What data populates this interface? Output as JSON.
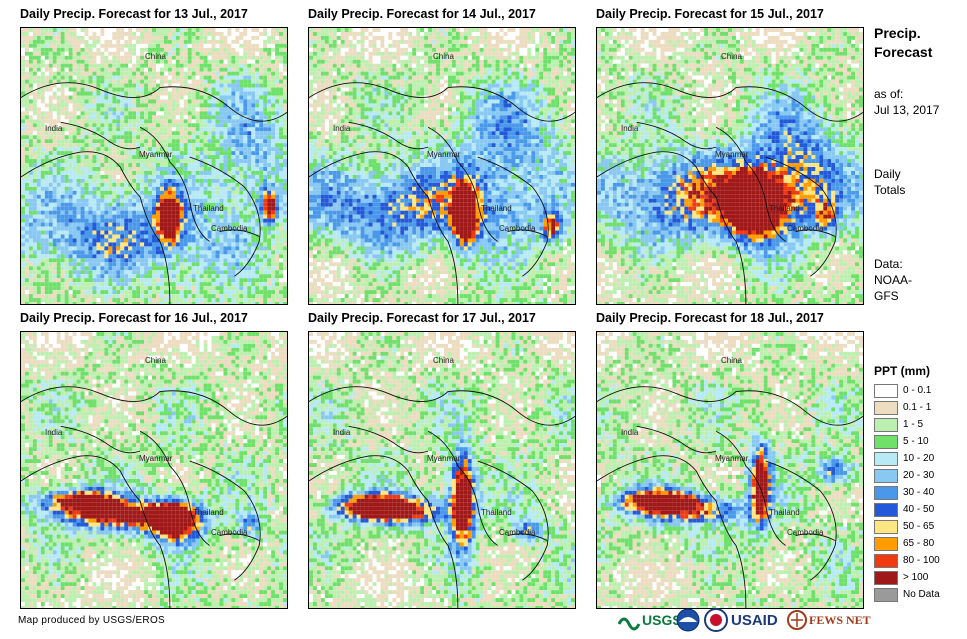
{
  "panels": [
    {
      "title": "Daily Precip. Forecast for 13 Jul., 2017"
    },
    {
      "title": "Daily Precip. Forecast for 14 Jul., 2017"
    },
    {
      "title": "Daily Precip. Forecast for 15 Jul., 2017"
    },
    {
      "title": "Daily Precip. Forecast for 16 Jul., 2017"
    },
    {
      "title": "Daily Precip. Forecast for 17 Jul., 2017"
    },
    {
      "title": "Daily Precip. Forecast for 18 Jul., 2017"
    }
  ],
  "map_labels": {
    "china": "China",
    "india": "India",
    "myanmar": "Myanmar",
    "thailand": "Thailand",
    "cambodia": "Cambodia"
  },
  "sidebar": {
    "title_line1": "Precip.",
    "title_line2": "Forecast",
    "as_of_line1": "as of:",
    "as_of_line2": "Jul 13, 2017",
    "totals_line1": "Daily",
    "totals_line2": "Totals",
    "data_line1": "Data:",
    "data_line2": "NOAA-",
    "data_line3": "GFS"
  },
  "legend": {
    "title": "PPT (mm)",
    "items": [
      {
        "label": "0 - 0.1",
        "color": "#ffffff"
      },
      {
        "label": "0.1 - 1",
        "color": "#ecdcc0"
      },
      {
        "label": "1 - 5",
        "color": "#bdf0b0"
      },
      {
        "label": "5 - 10",
        "color": "#6fe06a"
      },
      {
        "label": "10 - 20",
        "color": "#b8eaf6"
      },
      {
        "label": "20 - 30",
        "color": "#88c8f2"
      },
      {
        "label": "30 - 40",
        "color": "#4a98ea"
      },
      {
        "label": "40 - 50",
        "color": "#2358d8"
      },
      {
        "label": "50 - 65",
        "color": "#ffe680"
      },
      {
        "label": "65 - 80",
        "color": "#ff9c00"
      },
      {
        "label": "80 - 100",
        "color": "#f03a10"
      },
      {
        "label": "> 100",
        "color": "#a01818"
      },
      {
        "label": "No Data",
        "color": "#9a9a9a"
      }
    ]
  },
  "footer": {
    "credit": "Map produced by USGS/EROS",
    "logo_usgs": "USGS",
    "logo_usaid": "USAID",
    "logo_fewsnet": "FEWS NET"
  }
}
